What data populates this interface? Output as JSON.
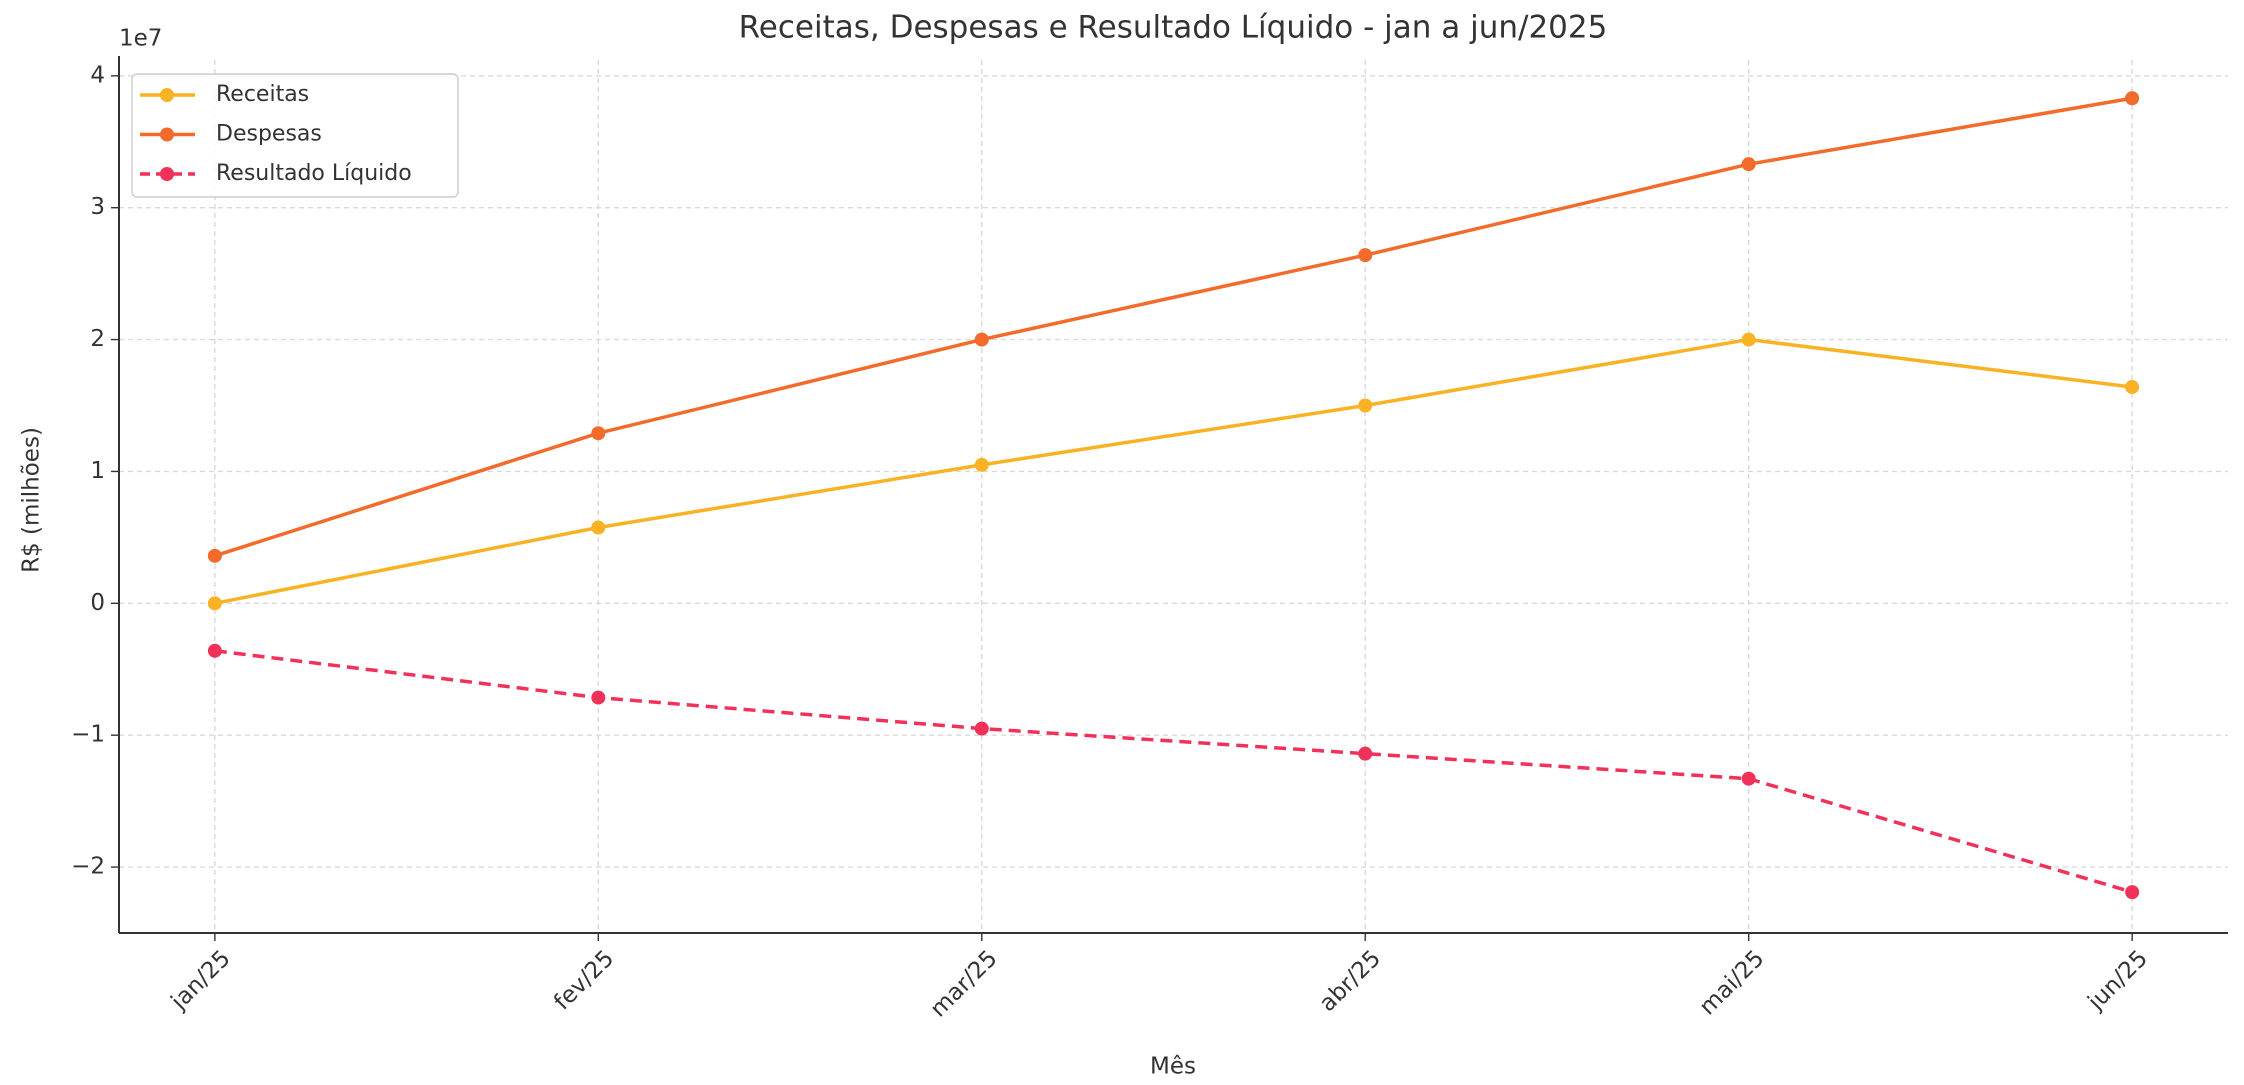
{
  "chart_data": {
    "type": "line",
    "title": "Receitas, Despesas e Resultado Líquido - jan a jun/2025",
    "xlabel": "Mês",
    "ylabel": "R$ (milhões)",
    "y_offset_label": "1e7",
    "categories": [
      "jan/25",
      "fev/25",
      "mar/25",
      "abr/25",
      "mai/25",
      "jun/25"
    ],
    "series": [
      {
        "name": "Receitas",
        "color": "#f9b224",
        "linestyle": "solid",
        "values": [
          0,
          5750000,
          10500000,
          15000000,
          20000000,
          16400000
        ]
      },
      {
        "name": "Despesas",
        "color": "#f26b2a",
        "linestyle": "solid",
        "values": [
          3600000,
          12900000,
          20000000,
          26400000,
          33300000,
          38300000
        ]
      },
      {
        "name": "Resultado Líquido",
        "color": "#f0325a",
        "linestyle": "dashed",
        "values": [
          -3600000,
          -7150000,
          -9500000,
          -11400000,
          -13300000,
          -21900000
        ]
      }
    ],
    "ylim": [
      -25000000,
      41200000
    ],
    "yticks": [
      {
        "value": -20000000,
        "label": "−2"
      },
      {
        "value": -10000000,
        "label": "−1"
      },
      0,
      {
        "value": 10000000,
        "label": "1"
      },
      {
        "value": 20000000,
        "label": "2"
      },
      {
        "value": 30000000,
        "label": "3"
      },
      {
        "value": 40000000,
        "label": "4"
      }
    ],
    "grid": true,
    "legend": "upper left"
  }
}
